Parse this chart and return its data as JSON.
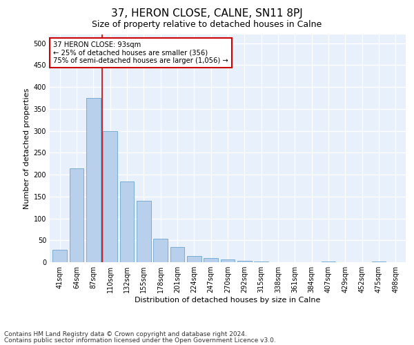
{
  "title": "37, HERON CLOSE, CALNE, SN11 8PJ",
  "subtitle": "Size of property relative to detached houses in Calne",
  "xlabel": "Distribution of detached houses by size in Calne",
  "ylabel": "Number of detached properties",
  "categories": [
    "41sqm",
    "64sqm",
    "87sqm",
    "110sqm",
    "132sqm",
    "155sqm",
    "178sqm",
    "201sqm",
    "224sqm",
    "247sqm",
    "270sqm",
    "292sqm",
    "315sqm",
    "338sqm",
    "361sqm",
    "384sqm",
    "407sqm",
    "429sqm",
    "452sqm",
    "475sqm",
    "498sqm"
  ],
  "values": [
    28,
    215,
    375,
    300,
    185,
    140,
    53,
    35,
    14,
    9,
    7,
    3,
    2,
    0,
    0,
    0,
    2,
    0,
    0,
    2,
    0
  ],
  "bar_color": "#b8d0eb",
  "bar_edge_color": "#7aadd4",
  "vline_color": "#cc0000",
  "annotation_text": "37 HERON CLOSE: 93sqm\n← 25% of detached houses are smaller (356)\n75% of semi-detached houses are larger (1,056) →",
  "annotation_box_color": "white",
  "annotation_box_edge": "#cc0000",
  "footer_line1": "Contains HM Land Registry data © Crown copyright and database right 2024.",
  "footer_line2": "Contains public sector information licensed under the Open Government Licence v3.0.",
  "ylim": [
    0,
    520
  ],
  "yticks": [
    0,
    50,
    100,
    150,
    200,
    250,
    300,
    350,
    400,
    450,
    500
  ],
  "bg_color": "#e8f0fb",
  "grid_color": "white",
  "title_fontsize": 11,
  "subtitle_fontsize": 9,
  "label_fontsize": 8,
  "tick_fontsize": 7,
  "footer_fontsize": 6.5
}
